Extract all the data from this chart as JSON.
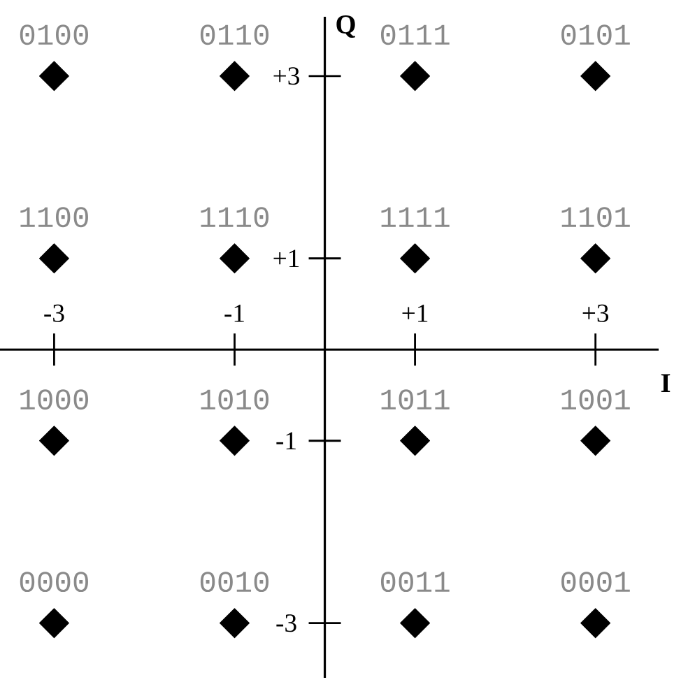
{
  "chart_data": {
    "type": "scatter",
    "xlabel": "I",
    "ylabel": "Q",
    "x": [
      -3,
      -1,
      1,
      3,
      -3,
      -1,
      1,
      3,
      -3,
      -1,
      1,
      3,
      -3,
      -1,
      1,
      3
    ],
    "series": [
      {
        "color": "#000000",
        "values": [
          3,
          3,
          3,
          3,
          1,
          1,
          1,
          1,
          -1,
          -1,
          -1,
          -1,
          -3,
          -3,
          -3,
          -3
        ]
      }
    ],
    "marker": "diamond",
    "xlim": [
      -3.6,
      3.7
    ],
    "ylim": [
      -3.6,
      3.65
    ],
    "xticks": [
      {
        "value": -3,
        "label": "-3"
      },
      {
        "value": -1,
        "label": "-1"
      },
      {
        "value": 1,
        "label": "+1"
      },
      {
        "value": 3,
        "label": "+3"
      }
    ],
    "yticks": [
      {
        "value": -3,
        "label": "-3"
      },
      {
        "value": -1,
        "label": "-1"
      },
      {
        "value": 1,
        "label": "+1"
      },
      {
        "value": 3,
        "label": "+3"
      }
    ],
    "annotations": [
      {
        "text": "0100",
        "x": -3,
        "y": 3
      },
      {
        "text": "0110",
        "x": -1,
        "y": 3
      },
      {
        "text": "0111",
        "x": 1,
        "y": 3
      },
      {
        "text": "0101",
        "x": 3,
        "y": 3
      },
      {
        "text": "1100",
        "x": -3,
        "y": 1
      },
      {
        "text": "1110",
        "x": -1,
        "y": 1
      },
      {
        "text": "1111",
        "x": 1,
        "y": 1
      },
      {
        "text": "1101",
        "x": 3,
        "y": 1
      },
      {
        "text": "1000",
        "x": -3,
        "y": -1
      },
      {
        "text": "1010",
        "x": -1,
        "y": -1
      },
      {
        "text": "1011",
        "x": 1,
        "y": -1
      },
      {
        "text": "1001",
        "x": 3,
        "y": -1
      },
      {
        "text": "0000",
        "x": -3,
        "y": -3
      },
      {
        "text": "0010",
        "x": -1,
        "y": -3
      },
      {
        "text": "0011",
        "x": 1,
        "y": -3
      },
      {
        "text": "0001",
        "x": 3,
        "y": -3
      }
    ]
  }
}
